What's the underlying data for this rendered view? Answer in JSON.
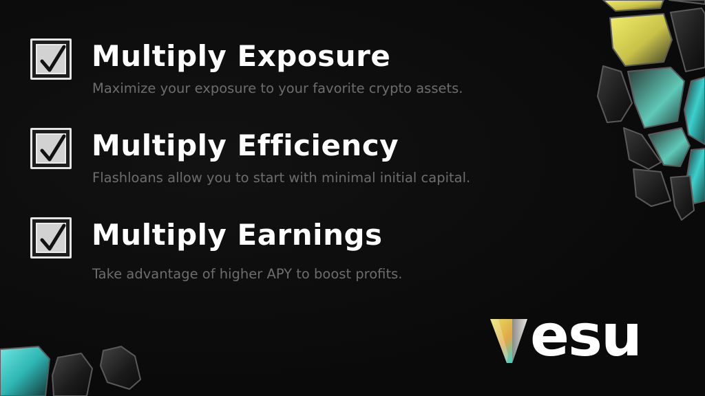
{
  "features": [
    {
      "title": "Multiply Exposure",
      "description": "Maximize your exposure to your favorite crypto assets."
    },
    {
      "title": "Multiply Efficiency",
      "description": "Flashloans allow you to start with minimal initial capital."
    },
    {
      "title": "Multiply Earnings",
      "description": "Take advantage of higher APY to boost profits."
    }
  ],
  "brand": {
    "wordmark": "esu",
    "logo_icon": "v-prism-icon"
  },
  "colors": {
    "background": "#0b0b0b",
    "title": "#ffffff",
    "description": "#6d6d6d",
    "checkbox_fill": "#d2d2d2",
    "checkbox_border": "#e4e4e4",
    "accent_yellow": "#e6e04a",
    "accent_cyan": "#3fd6d2"
  },
  "icons": {
    "checkbox": "checked-box-icon"
  }
}
